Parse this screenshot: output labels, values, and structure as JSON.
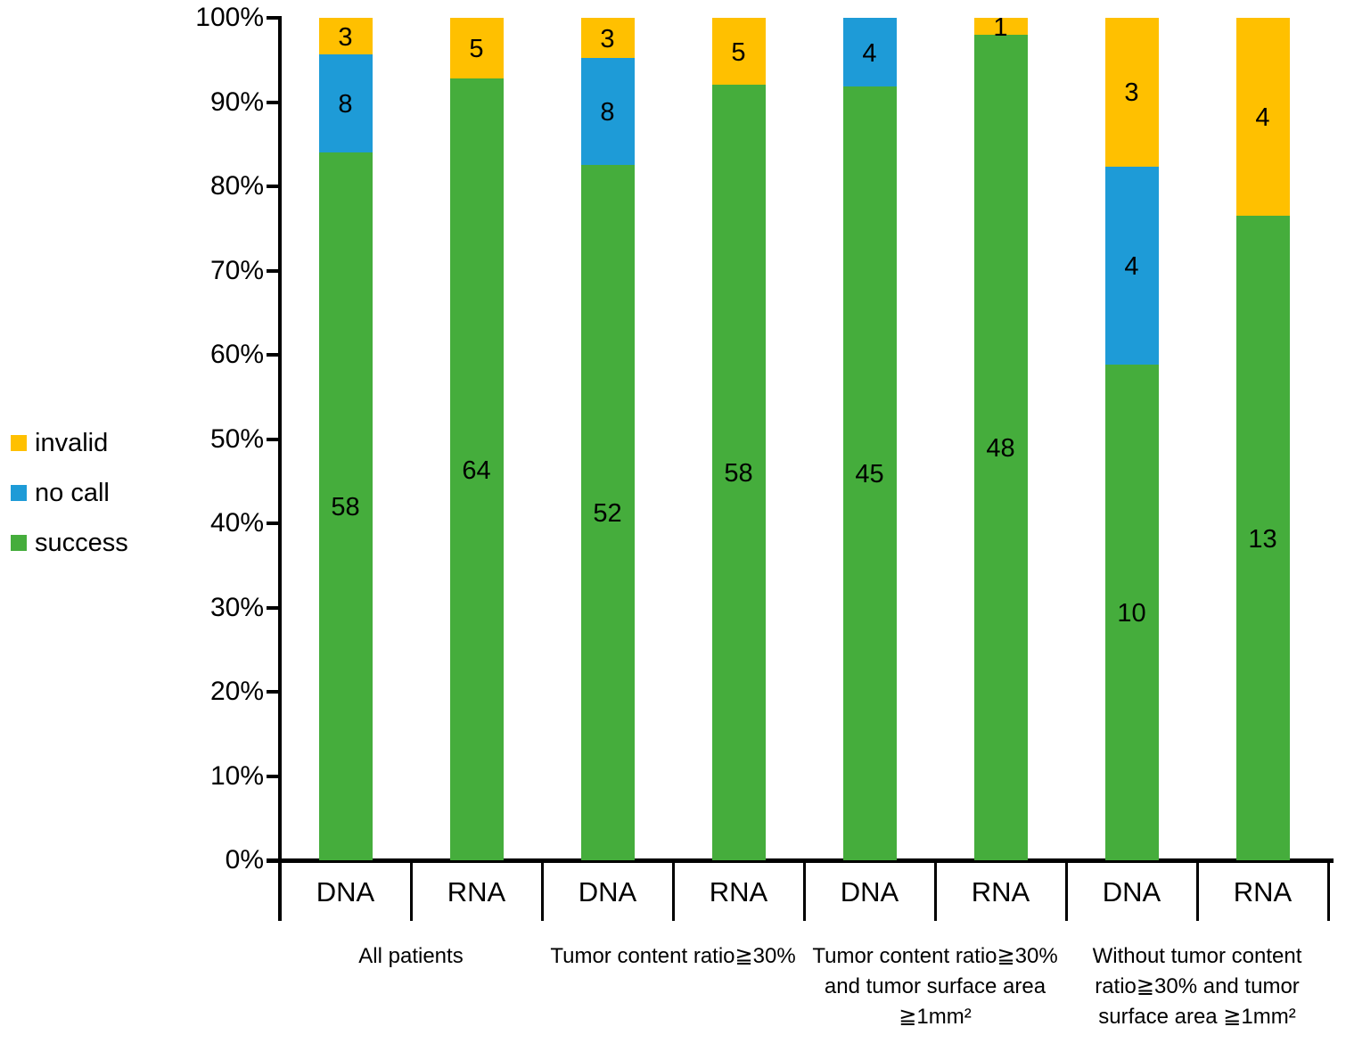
{
  "chart_data": {
    "type": "bar",
    "variant": "stacked-percent-column",
    "title": "",
    "xlabel": "",
    "ylabel": "",
    "ylim": [
      0,
      100
    ],
    "grid": false,
    "y_ticks": [
      "100%",
      "90%",
      "80%",
      "70%",
      "60%",
      "50%",
      "40%",
      "30%",
      "20%",
      "10%",
      "0%"
    ],
    "legend_position": "left",
    "legend": [
      {
        "key": "invalid",
        "label": "invalid",
        "color": "#FFC000"
      },
      {
        "key": "no_call",
        "label": "no call",
        "color": "#1E9BD7"
      },
      {
        "key": "success",
        "label": "success",
        "color": "#45AD3C"
      }
    ],
    "stack_order_bottom_to_top": [
      "success",
      "no_call",
      "invalid"
    ],
    "groups": [
      {
        "label_lines": [
          "All patients"
        ],
        "bars": [
          {
            "label": "DNA",
            "values": {
              "success": 58,
              "no_call": 8,
              "invalid": 3
            }
          },
          {
            "label": "RNA",
            "values": {
              "success": 64,
              "no_call": 0,
              "invalid": 5
            }
          }
        ]
      },
      {
        "label_lines": [
          "Tumor content ratio≧30%"
        ],
        "bars": [
          {
            "label": "DNA",
            "values": {
              "success": 52,
              "no_call": 8,
              "invalid": 3
            }
          },
          {
            "label": "RNA",
            "values": {
              "success": 58,
              "no_call": 0,
              "invalid": 5
            }
          }
        ]
      },
      {
        "label_lines": [
          "Tumor content ratio≧30%",
          "and tumor surface area",
          "≧1mm²"
        ],
        "bars": [
          {
            "label": "DNA",
            "values": {
              "success": 45,
              "no_call": 4,
              "invalid": 0
            }
          },
          {
            "label": "RNA",
            "values": {
              "success": 48,
              "no_call": 0,
              "invalid": 1
            }
          }
        ]
      },
      {
        "label_lines": [
          "Without tumor content",
          "ratio≧30% and tumor",
          "surface area ≧1mm²"
        ],
        "bars": [
          {
            "label": "DNA",
            "values": {
              "success": 10,
              "no_call": 4,
              "invalid": 3
            }
          },
          {
            "label": "RNA",
            "values": {
              "success": 13,
              "no_call": 0,
              "invalid": 4
            }
          }
        ]
      }
    ]
  }
}
